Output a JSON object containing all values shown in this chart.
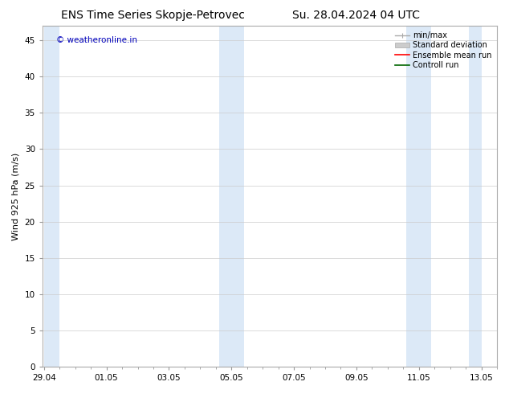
{
  "title_left": "ENS Time Series Skopje-Petrovec",
  "title_right": "Su. 28.04.2024 04 UTC",
  "ylabel": "Wind 925 hPa (m/s)",
  "watermark": "© weatheronline.in",
  "watermark_color": "#0000bb",
  "ylim": [
    0,
    47
  ],
  "yticks": [
    0,
    5,
    10,
    15,
    20,
    25,
    30,
    35,
    40,
    45
  ],
  "xtick_labels": [
    "29.04",
    "01.05",
    "03.05",
    "05.05",
    "07.05",
    "09.05",
    "11.05",
    "13.05"
  ],
  "xtick_positions": [
    0,
    2,
    4,
    6,
    8,
    10,
    12,
    14
  ],
  "shaded_bands": [
    [
      0.0,
      0.5
    ],
    [
      5.6,
      6.4
    ],
    [
      11.6,
      12.4
    ],
    [
      13.6,
      14.0
    ]
  ],
  "shade_color": "#dce9f7",
  "xlim": [
    -0.05,
    14.05
  ],
  "legend_labels": [
    "min/max",
    "Standard deviation",
    "Ensemble mean run",
    "Controll run"
  ],
  "background_color": "#ffffff",
  "plot_bg_color": "#ffffff",
  "grid_color": "#cccccc",
  "title_fontsize": 10,
  "axis_label_fontsize": 8,
  "tick_fontsize": 7.5,
  "legend_fontsize": 7,
  "watermark_fontsize": 7.5
}
